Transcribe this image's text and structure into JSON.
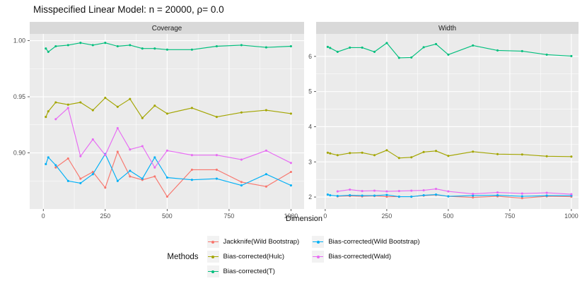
{
  "chart_data": {
    "type": "line",
    "title": "Misspecified Linear Model: n = 20000, ρ= 0.0",
    "xlabel": "Dimension",
    "x_ticks": [
      0,
      250,
      500,
      750,
      1000
    ],
    "x_tick_labels": [
      "0",
      "250",
      "500",
      "750",
      "1000"
    ],
    "x_minor": [
      125,
      375,
      625,
      875
    ],
    "legend": {
      "title": "Methods",
      "columns": [
        [
          "Jackknife(Wild Bootstrap)",
          "Bias-corrected(Hulc)",
          "Bias-corrected(T)"
        ],
        [
          "Bias-corrected(Wild Bootstrap)",
          "Bias-corrected(Wald)"
        ]
      ]
    },
    "style_colors": {
      "panel_bg": "#EBEBEB",
      "strip_bg": "#D9D9D9",
      "grid": "#FFFFFF",
      "tick_text": "#4D4D4D",
      "tick_mark": "#333333",
      "legend_key_bg": "#F2F2F2"
    },
    "panels": [
      {
        "label": "Coverage",
        "value_key": "coverage",
        "ylim": [
          0.85,
          1.006
        ],
        "xlim": [
          -55,
          1053
        ],
        "y_ticks": [
          1.0,
          0.95,
          0.9
        ],
        "y_tick_labels": [
          "1.00",
          "0.95",
          "0.90"
        ],
        "y_minor": [
          0.975,
          0.925,
          0.875
        ]
      },
      {
        "label": "Width",
        "value_key": "width",
        "ylim": [
          1.66,
          6.64
        ],
        "xlim": [
          -37,
          1029
        ],
        "y_ticks": [
          6,
          5,
          4,
          3,
          2
        ],
        "y_tick_labels": [
          "6",
          "5",
          "4",
          "3",
          "2"
        ],
        "y_minor": [
          5.5,
          4.5,
          3.5,
          2.5
        ]
      }
    ],
    "series": [
      {
        "name": "Jackknife(Wild Bootstrap)",
        "color": "#F8766D",
        "x": [
          50,
          100,
          150,
          200,
          250,
          300,
          350,
          400,
          450,
          500,
          600,
          700,
          800,
          900,
          1000
        ],
        "coverage": [
          0.887,
          0.895,
          0.877,
          0.883,
          0.869,
          0.901,
          0.879,
          0.876,
          0.879,
          0.861,
          0.885,
          0.885,
          0.874,
          0.87,
          0.883
        ],
        "width": [
          2.02,
          2.03,
          2.02,
          2.03,
          2.01,
          2.01,
          2.01,
          2.04,
          2.06,
          2.02,
          1.99,
          2.02,
          1.97,
          2.02,
          2.01
        ]
      },
      {
        "name": "Bias-corrected(Hulc)",
        "color": "#A3A500",
        "x": [
          10,
          20,
          50,
          100,
          150,
          200,
          250,
          300,
          350,
          400,
          450,
          500,
          600,
          700,
          800,
          900,
          1000
        ],
        "coverage": [
          0.932,
          0.937,
          0.945,
          0.943,
          0.945,
          0.938,
          0.949,
          0.941,
          0.948,
          0.931,
          0.942,
          0.935,
          0.94,
          0.932,
          0.936,
          0.938,
          0.935
        ],
        "width": [
          3.26,
          3.24,
          3.19,
          3.25,
          3.26,
          3.19,
          3.33,
          3.11,
          3.13,
          3.28,
          3.31,
          3.17,
          3.29,
          3.22,
          3.21,
          3.16,
          3.15
        ]
      },
      {
        "name": "Bias-corrected(T)",
        "color": "#00BF7D",
        "x": [
          10,
          20,
          50,
          100,
          150,
          200,
          250,
          300,
          350,
          400,
          450,
          500,
          600,
          700,
          800,
          900,
          1000
        ],
        "coverage": [
          0.993,
          0.99,
          0.995,
          0.996,
          0.998,
          0.996,
          0.998,
          0.995,
          0.996,
          0.993,
          0.993,
          0.992,
          0.992,
          0.995,
          0.996,
          0.994,
          0.995
        ],
        "width": [
          6.27,
          6.24,
          6.13,
          6.25,
          6.25,
          6.13,
          6.38,
          5.96,
          5.97,
          6.26,
          6.35,
          6.05,
          6.31,
          6.17,
          6.15,
          6.05,
          6.01
        ]
      },
      {
        "name": "Bias-corrected(Wild Bootstrap)",
        "color": "#00B0F6",
        "x": [
          10,
          20,
          50,
          100,
          150,
          200,
          250,
          300,
          350,
          400,
          450,
          500,
          600,
          700,
          800,
          900,
          1000
        ],
        "coverage": [
          0.89,
          0.896,
          0.889,
          0.875,
          0.873,
          0.881,
          0.899,
          0.875,
          0.884,
          0.877,
          0.896,
          0.878,
          0.876,
          0.877,
          0.871,
          0.881,
          0.871
        ],
        "width": [
          2.07,
          2.05,
          2.03,
          2.05,
          2.04,
          2.04,
          2.06,
          2.01,
          2.01,
          2.05,
          2.07,
          2.02,
          2.04,
          2.05,
          2.02,
          2.04,
          2.04
        ]
      },
      {
        "name": "Bias-corrected(Wald)",
        "color": "#E76BF3",
        "x": [
          50,
          100,
          150,
          200,
          250,
          300,
          350,
          400,
          450,
          500,
          600,
          700,
          800,
          900,
          1000
        ],
        "coverage": [
          0.93,
          0.94,
          0.897,
          0.912,
          0.898,
          0.922,
          0.903,
          0.906,
          0.887,
          0.902,
          0.898,
          0.898,
          0.894,
          0.902,
          0.891
        ],
        "width": [
          2.16,
          2.21,
          2.17,
          2.18,
          2.16,
          2.17,
          2.18,
          2.19,
          2.23,
          2.16,
          2.09,
          2.13,
          2.1,
          2.12,
          2.08
        ]
      }
    ]
  }
}
